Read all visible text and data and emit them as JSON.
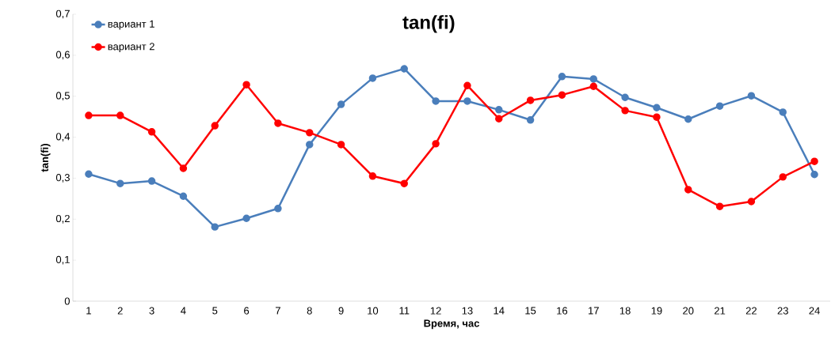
{
  "chart_data": {
    "type": "line",
    "title": "tan(fi)",
    "xlabel": "Время, час",
    "ylabel": "tan(fi)",
    "categories": [
      "1",
      "2",
      "3",
      "4",
      "5",
      "6",
      "7",
      "8",
      "9",
      "10",
      "11",
      "12",
      "13",
      "14",
      "15",
      "16",
      "17",
      "18",
      "19",
      "20",
      "21",
      "22",
      "23",
      "24"
    ],
    "series": [
      {
        "name": "вариант 1",
        "color": "#4a7ebb",
        "values": [
          0.31,
          0.287,
          0.293,
          0.256,
          0.181,
          0.202,
          0.226,
          0.382,
          0.48,
          0.544,
          0.567,
          0.488,
          0.488,
          0.467,
          0.442,
          0.548,
          0.542,
          0.497,
          0.472,
          0.444,
          0.476,
          0.501,
          0.461,
          0.309
        ]
      },
      {
        "name": "вариант 2",
        "color": "#ff0000",
        "values": [
          0.453,
          0.453,
          0.413,
          0.324,
          0.428,
          0.528,
          0.434,
          0.411,
          0.382,
          0.305,
          0.287,
          0.384,
          0.526,
          0.445,
          0.49,
          0.503,
          0.524,
          0.465,
          0.449,
          0.272,
          0.231,
          0.243,
          0.303,
          0.341
        ]
      }
    ],
    "ylim": [
      0,
      0.7
    ],
    "yticks": [
      {
        "value": 0,
        "label": "0"
      },
      {
        "value": 0.1,
        "label": "0,1"
      },
      {
        "value": 0.2,
        "label": "0,2"
      },
      {
        "value": 0.3,
        "label": "0,3"
      },
      {
        "value": 0.4,
        "label": "0,4"
      },
      {
        "value": 0.5,
        "label": "0,5"
      },
      {
        "value": 0.6,
        "label": "0,6"
      },
      {
        "value": 0.7,
        "label": "0,7"
      }
    ],
    "grid": false,
    "legend": "top left",
    "marker": "circle",
    "line_style": "solid"
  }
}
